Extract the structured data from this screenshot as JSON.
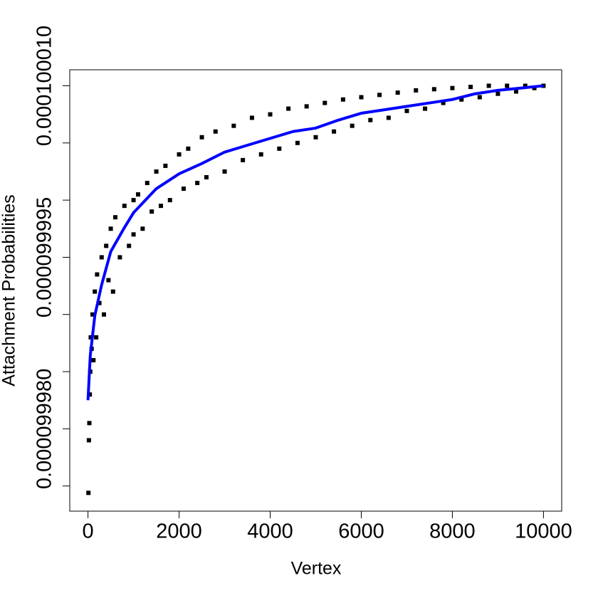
{
  "chart_data": {
    "type": "scatter",
    "xlabel": "Vertex",
    "ylabel": "Attachment Probabilities",
    "xlim": [
      -400,
      10400
    ],
    "ylim": [
      9.99728e-05,
      0.0001000114
    ],
    "xticks": [
      0,
      2000,
      4000,
      6000,
      8000,
      10000
    ],
    "yticks": [
      {
        "value": 9.9975e-05,
        "label": null
      },
      {
        "value": 9.998e-05,
        "label": "0.000099980"
      },
      {
        "value": 9.9985e-05,
        "label": null
      },
      {
        "value": 9.999e-05,
        "label": null
      },
      {
        "value": 9.9995e-05,
        "label": "0.000099995"
      },
      {
        "value": 0.0001,
        "label": null
      },
      {
        "value": 0.000100005,
        "label": null
      },
      {
        "value": 0.00010001,
        "label": "0.000100010"
      }
    ],
    "grid": false,
    "series": [
      {
        "type": "scatter",
        "color": "#000000",
        "x": [
          10,
          20,
          30,
          40,
          50,
          60,
          80,
          100,
          120,
          150,
          180,
          200,
          250,
          300,
          350,
          400,
          450,
          500,
          550,
          600,
          700,
          800,
          900,
          1000,
          1000,
          1100,
          1200,
          1300,
          1400,
          1500,
          1600,
          1700,
          1800,
          2000,
          2100,
          2200,
          2400,
          2500,
          2600,
          2800,
          3000,
          3200,
          3400,
          3600,
          3800,
          4000,
          4200,
          4400,
          4600,
          4800,
          5000,
          5200,
          5400,
          5600,
          5800,
          6000,
          6200,
          6400,
          6600,
          6800,
          7000,
          7200,
          7400,
          7600,
          7800,
          8000,
          8200,
          8400,
          8600,
          8800,
          9000,
          9200,
          9400,
          9600,
          9800,
          10000
        ],
        "values": [
          9.99744e-05,
          9.9979e-05,
          9.99805e-05,
          9.9983e-05,
          9.9985e-05,
          9.9988e-05,
          9.9987e-05,
          9.999e-05,
          9.9986e-05,
          9.9992e-05,
          9.9988e-05,
          9.99935e-05,
          9.9991e-05,
          9.9995e-05,
          9.999e-05,
          9.9996e-05,
          9.9993e-05,
          9.99975e-05,
          9.9992e-05,
          9.99985e-05,
          9.9995e-05,
          9.99995e-05,
          9.9996e-05,
          0.0001,
          9.9997e-05,
          0.0001000005,
          9.99975e-05,
          0.0001000015,
          9.9999e-05,
          0.0001000025,
          9.99995e-05,
          0.000100003,
          0.0001,
          0.000100004,
          0.000100001,
          0.0001000045,
          0.0001000015,
          0.0001000055,
          0.000100002,
          0.000100006,
          0.0001000025,
          0.0001000065,
          0.0001000035,
          0.0001000072,
          0.000100004,
          0.0001000075,
          0.0001000045,
          0.000100008,
          0.000100005,
          0.0001000082,
          0.0001000055,
          0.0001000085,
          0.000100006,
          0.0001000088,
          0.0001000065,
          0.000100009,
          0.000100007,
          0.0001000092,
          0.0001000072,
          0.0001000094,
          0.0001000078,
          0.0001000096,
          0.000100008,
          0.0001000097,
          0.0001000085,
          0.0001000098,
          0.0001000088,
          0.0001000099,
          0.000100009,
          0.00010001,
          0.0001000093,
          0.00010001,
          0.0001000095,
          0.00010001,
          0.0001000098,
          0.00010001
        ]
      },
      {
        "type": "line",
        "color": "#0000ff",
        "x": [
          0,
          50,
          150,
          300,
          500,
          800,
          1000,
          1500,
          2000,
          2500,
          3000,
          3500,
          4000,
          4500,
          5000,
          5500,
          6000,
          6500,
          7000,
          7500,
          8000,
          8500,
          9000,
          9500,
          10000
        ],
        "values": [
          9.99825e-05,
          9.99864e-05,
          9.99899e-05,
          9.99926e-05,
          9.99955e-05,
          9.99976e-05,
          9.99989e-05,
          0.000100001,
          0.0001000023,
          0.0001000032,
          0.0001000042,
          0.0001000048,
          0.0001000054,
          0.000100006,
          0.0001000063,
          0.000100007,
          0.0001000076,
          0.0001000079,
          0.0001000082,
          0.0001000085,
          0.0001000088,
          0.0001000093,
          0.0001000096,
          0.0001000098,
          0.00010001
        ]
      }
    ]
  }
}
